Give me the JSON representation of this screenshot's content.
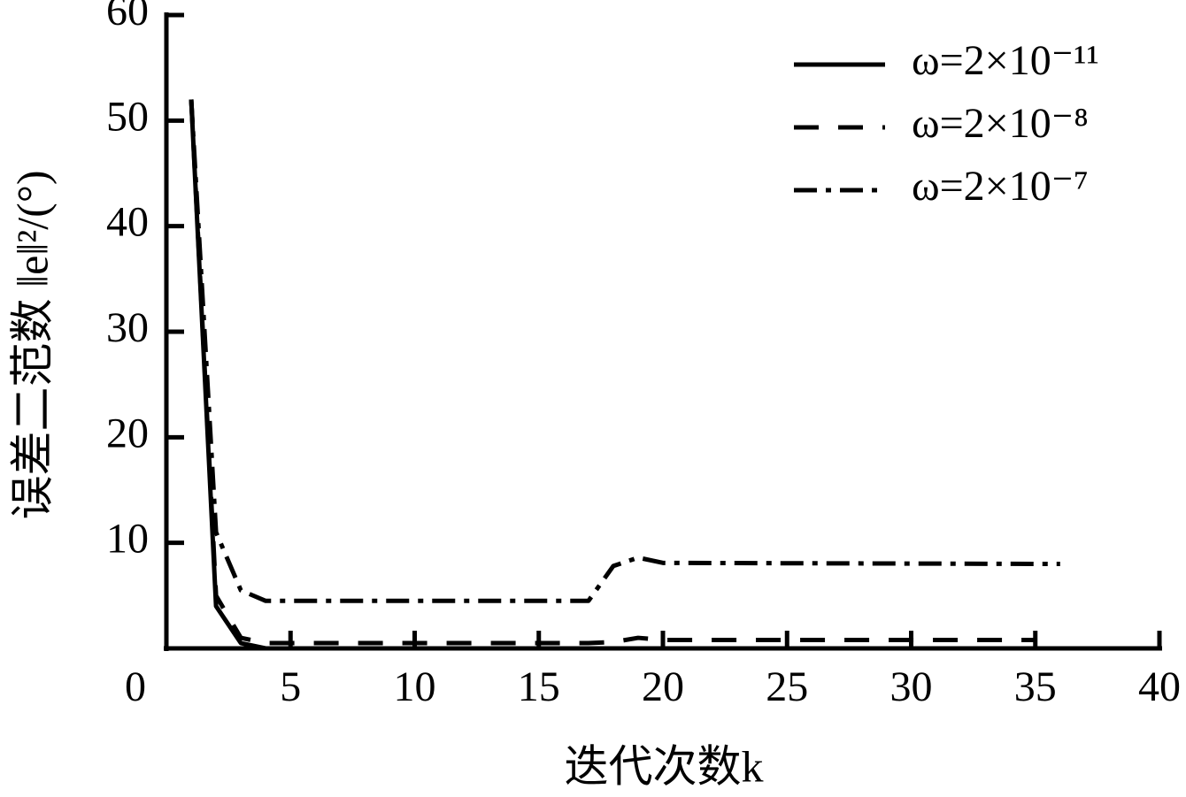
{
  "chart_data": {
    "type": "line",
    "x_label": "迭代次数k",
    "y_label": "误差二范数 ‖e‖²/(°)",
    "xlim": [
      0,
      40
    ],
    "xticks": [
      0,
      5,
      10,
      15,
      20,
      25,
      30,
      35,
      40
    ],
    "ylim": [
      0,
      60
    ],
    "yticks": [
      10,
      20,
      30,
      40,
      50,
      60
    ],
    "legend": "upper right",
    "series": [
      {
        "name": "ω=2×10⁻¹¹",
        "color": "#000000",
        "dash": "solid",
        "x": [
          1,
          2,
          3,
          4,
          5
        ],
        "values": [
          52,
          4,
          0.5,
          0,
          0
        ]
      },
      {
        "name": "ω=2×10⁻⁸",
        "color": "#000000",
        "dash": "dashed",
        "x": [
          1,
          2,
          3,
          4,
          17,
          18,
          19,
          20,
          35
        ],
        "values": [
          52,
          5,
          1,
          0.5,
          0.5,
          0.6,
          1,
          0.8,
          0.8
        ]
      },
      {
        "name": "ω=2×10⁻⁷",
        "color": "#000000",
        "dash": "dashdot",
        "x": [
          1,
          2,
          3,
          4,
          17,
          18,
          19,
          20,
          36
        ],
        "values": [
          52,
          11,
          5.5,
          4.5,
          4.5,
          7.8,
          8.6,
          8.1,
          8
        ]
      }
    ]
  }
}
